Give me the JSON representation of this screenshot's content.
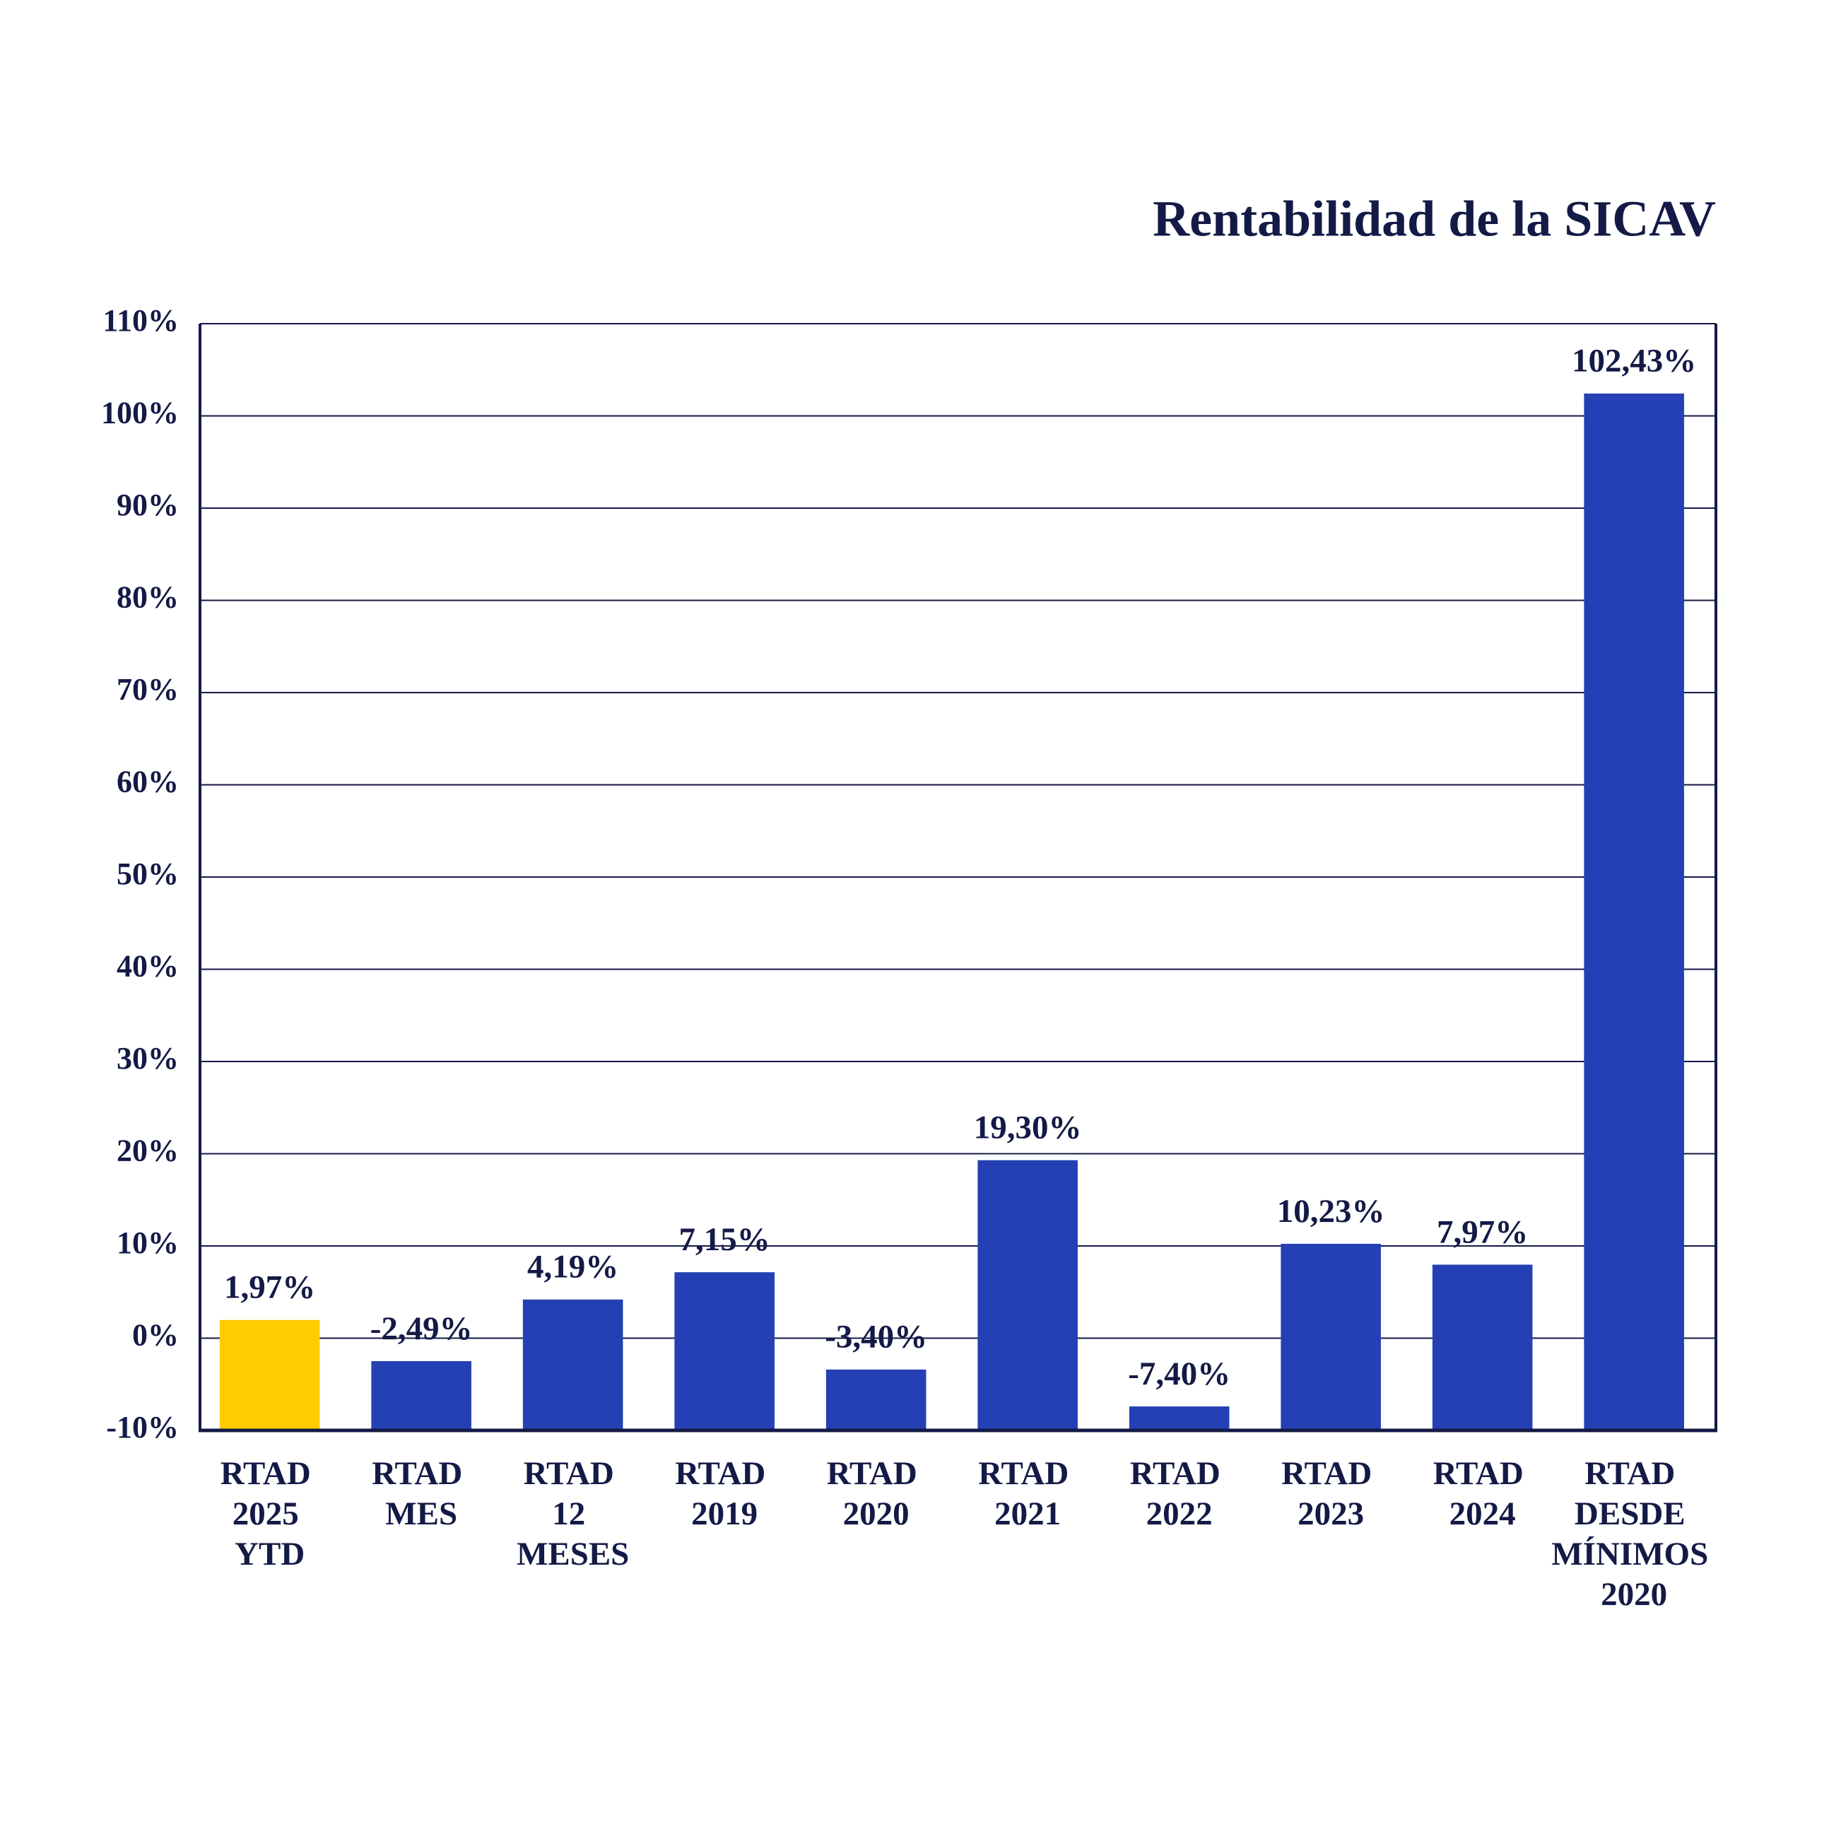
{
  "chart_data": {
    "type": "bar",
    "title": "Rentabilidad de la SICAV",
    "categories": [
      "RTAD 2025 YTD",
      "RTAD MES",
      "RTAD 12 MESES",
      "RTAD 2019",
      "RTAD 2020",
      "RTAD 2021",
      "RTAD 2022",
      "RTAD 2023",
      "RTAD 2024",
      "RTAD DESDE MÍNIMOS 2020"
    ],
    "values": [
      1.97,
      -2.49,
      4.19,
      7.15,
      -3.4,
      19.3,
      -7.4,
      10.23,
      7.97,
      102.43
    ],
    "value_labels": [
      "1,97%",
      "-2,49%",
      "4,19%",
      "7,15%",
      "-3,40%",
      "19,30%",
      "-7,40%",
      "10,23%",
      "7,97%",
      "102,43%"
    ],
    "colors": [
      "#ffcc00",
      "#2540b4",
      "#2540b4",
      "#2540b4",
      "#2540b4",
      "#2540b4",
      "#2540b4",
      "#2540b4",
      "#2540b4",
      "#2540b4"
    ],
    "ylim": [
      -10,
      110
    ],
    "yticks": [
      {
        "value": -10,
        "label": "-10%"
      },
      {
        "value": 0,
        "label": "0%"
      },
      {
        "value": 10,
        "label": "10%"
      },
      {
        "value": 20,
        "label": "20%"
      },
      {
        "value": 30,
        "label": "30%"
      },
      {
        "value": 40,
        "label": "40%"
      },
      {
        "value": 50,
        "label": "50%"
      },
      {
        "value": 60,
        "label": "60%"
      },
      {
        "value": 70,
        "label": "70%"
      },
      {
        "value": 80,
        "label": "80%"
      },
      {
        "value": 90,
        "label": "90%"
      },
      {
        "value": 100,
        "label": "100%"
      },
      {
        "value": 110,
        "label": "110%"
      }
    ],
    "grid": true
  }
}
